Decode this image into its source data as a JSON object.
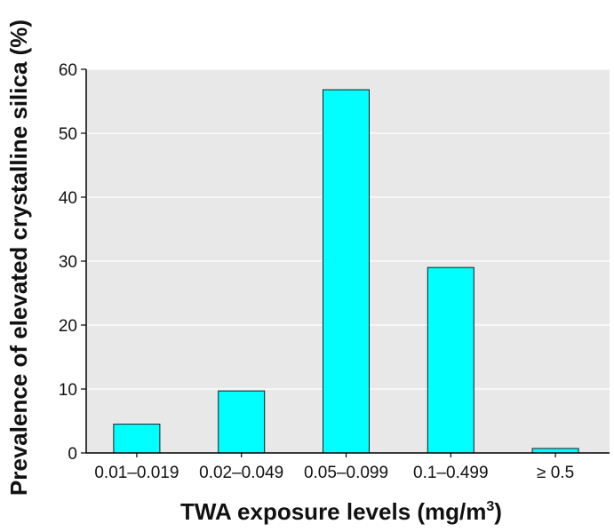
{
  "chart_data": {
    "type": "bar",
    "categories": [
      "0.01–0.019",
      "0.02–0.049",
      "0.05–0.099",
      "0.1–0.499",
      "≥ 0.5"
    ],
    "values": [
      4.5,
      9.7,
      56.8,
      29.0,
      0.7
    ],
    "xlabel": "TWA exposure levels (mg/m",
    "xlabel_superscript": "3",
    "xlabel_suffix": ")",
    "ylabel": "Prevalence of elevated crystalline silica (%)",
    "ylim": [
      0,
      60
    ],
    "yticks": [
      "0",
      "10",
      "20",
      "30",
      "40",
      "50",
      "60"
    ],
    "grid": true,
    "colors": {
      "plot_background": "#e8e8e8",
      "bar_fill": "#00ffff",
      "bar_stroke": "#1a1a1a",
      "gridline": "#ffffff",
      "axis": "#000000"
    }
  }
}
